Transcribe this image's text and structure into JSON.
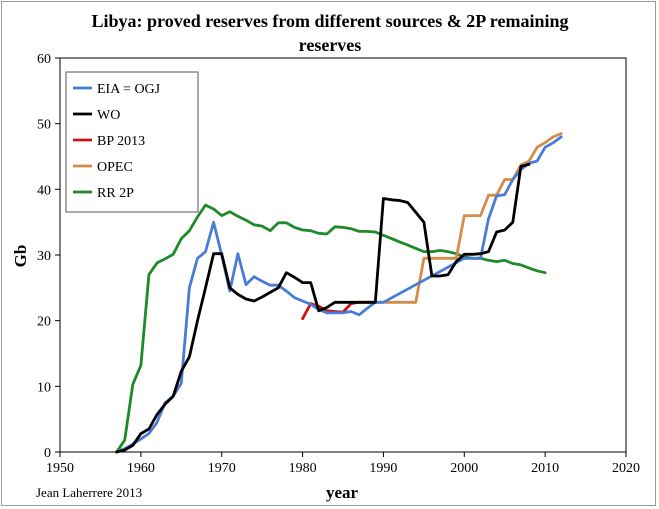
{
  "chart_data": {
    "type": "line",
    "title_line1": "Libya: proved reserves from different sources & 2P remaining",
    "title_line2": "reserves",
    "xlabel": "year",
    "ylabel": "Gb",
    "xlim": [
      1950,
      2020
    ],
    "ylim": [
      0,
      60
    ],
    "x_ticks": [
      "1950",
      "1960",
      "1970",
      "1980",
      "1990",
      "2000",
      "2010",
      "2020"
    ],
    "y_ticks": [
      "0",
      "10",
      "20",
      "30",
      "40",
      "50",
      "60"
    ],
    "grid": false,
    "legend_position": "top-left",
    "credit": "Jean Laherrere 2013",
    "series": [
      {
        "name": "EIA = OGJ",
        "color": "#4a7bd6",
        "x": [
          1957,
          1958,
          1959,
          1960,
          1961,
          1962,
          1963,
          1964,
          1965,
          1966,
          1967,
          1968,
          1969,
          1970,
          1971,
          1972,
          1973,
          1974,
          1975,
          1976,
          1977,
          1978,
          1979,
          1980,
          1981,
          1982,
          1983,
          1984,
          1985,
          1986,
          1987,
          1988,
          1989,
          1990,
          2000,
          2001,
          2002,
          2003,
          2004,
          2005,
          2006,
          2007,
          2008,
          2009,
          2010,
          2011,
          2012
        ],
        "y": [
          0,
          0.5,
          1.2,
          2,
          2.8,
          4.5,
          7.5,
          8.5,
          10.5,
          25,
          29.5,
          30.5,
          35,
          30,
          24.5,
          30.2,
          25.5,
          26.7,
          26,
          25.4,
          25.4,
          24.5,
          23.5,
          23,
          22.5,
          21.7,
          21.2,
          21.2,
          21.2,
          21.4,
          20.9,
          21.9,
          22.8,
          22.8,
          29.5,
          29.5,
          29.5,
          35.5,
          39,
          39.2,
          41.5,
          43,
          44,
          44.3,
          46.4,
          47.1,
          48.0
        ]
      },
      {
        "name": "WO",
        "color": "#000000",
        "x": [
          1957,
          1958,
          1959,
          1960,
          1961,
          1962,
          1963,
          1964,
          1965,
          1966,
          1967,
          1968,
          1969,
          1970,
          1971,
          1972,
          1973,
          1974,
          1975,
          1976,
          1977,
          1978,
          1979,
          1980,
          1981,
          1982,
          1983,
          1984,
          1985,
          1986,
          1987,
          1988,
          1989,
          1990,
          1991,
          1992,
          1993,
          1994,
          1995,
          1996,
          1997,
          1998,
          1999,
          2000,
          2001,
          2002,
          2003,
          2004,
          2005,
          2006,
          2007,
          2008
        ],
        "y": [
          0,
          0.3,
          1,
          2.8,
          3.5,
          5.7,
          7.3,
          8.5,
          12.3,
          14.5,
          20,
          25,
          30.2,
          30.2,
          25,
          24,
          23.3,
          23,
          23.6,
          24.3,
          25,
          27.3,
          26.6,
          25.8,
          25.8,
          21.5,
          22,
          22.8,
          22.8,
          22.8,
          22.8,
          22.8,
          22.8,
          38.6,
          38.4,
          38.3,
          38,
          36.5,
          35,
          26.8,
          26.8,
          27,
          29,
          30.1,
          30.1,
          30.2,
          30.5,
          33.5,
          33.8,
          35,
          43.5,
          43.8
        ]
      },
      {
        "name": "BP 2013",
        "color": "#d01010",
        "x": [
          1980,
          1981,
          1982,
          1983,
          1984,
          1985,
          1986,
          1987,
          1988,
          1989
        ],
        "y": [
          20.3,
          22.6,
          22.2,
          21.5,
          21.4,
          21.3,
          22.6,
          22.8,
          22.8,
          22.8
        ]
      },
      {
        "name": "OPEC",
        "color": "#d58b4a",
        "x": [
          1989,
          1990,
          1991,
          1992,
          1993,
          1994,
          1995,
          1996,
          1997,
          1998,
          1999,
          2000,
          2001,
          2002,
          2003,
          2004,
          2005,
          2006,
          2007,
          2008,
          2009,
          2010,
          2011,
          2012
        ],
        "y": [
          22.8,
          22.8,
          22.8,
          22.8,
          22.8,
          22.8,
          29.5,
          29.5,
          29.5,
          29.5,
          29.5,
          36,
          36,
          36,
          39.1,
          39.1,
          41.5,
          41.5,
          43.7,
          44.3,
          46.4,
          47.1,
          48.0,
          48.5
        ]
      },
      {
        "name": "RR 2P",
        "color": "#1e8a28",
        "x": [
          1957,
          1958,
          1959,
          1960,
          1961,
          1962,
          1963,
          1964,
          1965,
          1966,
          1967,
          1968,
          1969,
          1970,
          1971,
          1972,
          1973,
          1974,
          1975,
          1976,
          1977,
          1978,
          1979,
          1980,
          1981,
          1982,
          1983,
          1984,
          1985,
          1986,
          1987,
          1988,
          1989,
          1990,
          1991,
          1992,
          1993,
          1994,
          1995,
          1996,
          1997,
          1998,
          1999,
          2000,
          2001,
          2002,
          2003,
          2004,
          2005,
          2006,
          2007,
          2008,
          2009,
          2010
        ],
        "y": [
          0,
          1.8,
          10.3,
          13.2,
          27,
          28.8,
          29.4,
          30.1,
          32.5,
          33.7,
          35.8,
          37.6,
          37,
          36,
          36.6,
          35.9,
          35.3,
          34.6,
          34.4,
          33.7,
          34.9,
          34.9,
          34.2,
          33.8,
          33.7,
          33.3,
          33.2,
          34.3,
          34.2,
          34,
          33.6,
          33.6,
          33.5,
          33,
          32.5,
          32,
          31.5,
          31,
          30.5,
          30.5,
          30.7,
          30.5,
          30.2,
          29.7,
          29.5,
          29.5,
          29.2,
          29,
          29.2,
          28.7,
          28.5,
          28,
          27.6,
          27.3
        ]
      }
    ]
  }
}
